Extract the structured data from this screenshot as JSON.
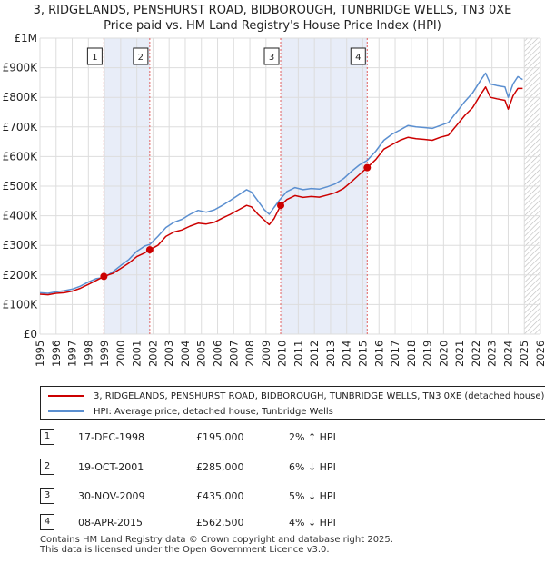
{
  "title_line1": "3, RIDGELANDS, PENSHURST ROAD, BIDBOROUGH, TUNBRIDGE WELLS, TN3 0XE",
  "title_line2": "Price paid vs. HM Land Registry's House Price Index (HPI)",
  "chart_data": {
    "type": "line",
    "title": "3, RIDGELANDS, PENSHURST ROAD, BIDBOROUGH, TUNBRIDGE WELLS, TN3 0XE — Price paid vs. HM Land Registry's House Price Index (HPI)",
    "xlim": [
      1995,
      2026
    ],
    "ylim": [
      0,
      1000000
    ],
    "x_ticks": [
      "1995",
      "1996",
      "1997",
      "1998",
      "1999",
      "2000",
      "2001",
      "2002",
      "2003",
      "2004",
      "2005",
      "2006",
      "2007",
      "2008",
      "2009",
      "2010",
      "2011",
      "2012",
      "2013",
      "2014",
      "2015",
      "2016",
      "2017",
      "2018",
      "2019",
      "2020",
      "2021",
      "2022",
      "2023",
      "2024",
      "2025",
      "2026"
    ],
    "y_ticks": [
      {
        "value": 0,
        "label": "£0"
      },
      {
        "value": 100000,
        "label": "£100K"
      },
      {
        "value": 200000,
        "label": "£200K"
      },
      {
        "value": 300000,
        "label": "£300K"
      },
      {
        "value": 400000,
        "label": "£400K"
      },
      {
        "value": 500000,
        "label": "£500K"
      },
      {
        "value": 600000,
        "label": "£600K"
      },
      {
        "value": 700000,
        "label": "£700K"
      },
      {
        "value": 800000,
        "label": "£800K"
      },
      {
        "value": 900000,
        "label": "£900K"
      },
      {
        "value": 1000000,
        "label": "£1M"
      }
    ],
    "series": [
      {
        "name": "3, RIDGELANDS, PENSHURST ROAD, BIDBOROUGH, TUNBRIDGE WELLS, TN3 0XE (detached house)",
        "color": "#cc0000",
        "points": [
          [
            1995.0,
            135000
          ],
          [
            1995.5,
            133000
          ],
          [
            1996.0,
            138000
          ],
          [
            1996.5,
            140000
          ],
          [
            1997.0,
            145000
          ],
          [
            1997.5,
            155000
          ],
          [
            1998.0,
            168000
          ],
          [
            1998.5,
            182000
          ],
          [
            1998.96,
            195000
          ],
          [
            1999.5,
            205000
          ],
          [
            2000.0,
            222000
          ],
          [
            2000.5,
            240000
          ],
          [
            2001.0,
            262000
          ],
          [
            2001.5,
            275000
          ],
          [
            2001.8,
            285000
          ],
          [
            2002.3,
            300000
          ],
          [
            2002.8,
            330000
          ],
          [
            2003.3,
            345000
          ],
          [
            2003.8,
            352000
          ],
          [
            2004.3,
            365000
          ],
          [
            2004.8,
            375000
          ],
          [
            2005.3,
            372000
          ],
          [
            2005.8,
            378000
          ],
          [
            2006.3,
            392000
          ],
          [
            2006.8,
            405000
          ],
          [
            2007.3,
            420000
          ],
          [
            2007.8,
            435000
          ],
          [
            2008.1,
            430000
          ],
          [
            2008.5,
            405000
          ],
          [
            2008.9,
            385000
          ],
          [
            2009.2,
            370000
          ],
          [
            2009.5,
            390000
          ],
          [
            2009.91,
            435000
          ],
          [
            2010.3,
            455000
          ],
          [
            2010.8,
            468000
          ],
          [
            2011.3,
            462000
          ],
          [
            2011.8,
            465000
          ],
          [
            2012.3,
            463000
          ],
          [
            2012.8,
            470000
          ],
          [
            2013.3,
            478000
          ],
          [
            2013.8,
            492000
          ],
          [
            2014.3,
            515000
          ],
          [
            2014.8,
            540000
          ],
          [
            2015.27,
            562500
          ],
          [
            2015.8,
            590000
          ],
          [
            2016.3,
            625000
          ],
          [
            2016.8,
            640000
          ],
          [
            2017.3,
            655000
          ],
          [
            2017.8,
            665000
          ],
          [
            2018.3,
            660000
          ],
          [
            2018.8,
            658000
          ],
          [
            2019.3,
            655000
          ],
          [
            2019.8,
            665000
          ],
          [
            2020.3,
            672000
          ],
          [
            2020.8,
            705000
          ],
          [
            2021.3,
            738000
          ],
          [
            2021.8,
            765000
          ],
          [
            2022.3,
            810000
          ],
          [
            2022.6,
            835000
          ],
          [
            2022.9,
            800000
          ],
          [
            2023.3,
            795000
          ],
          [
            2023.8,
            790000
          ],
          [
            2024.0,
            760000
          ],
          [
            2024.3,
            805000
          ],
          [
            2024.6,
            830000
          ],
          [
            2024.9,
            830000
          ]
        ]
      },
      {
        "name": "HPI: Average price, detached house, Tunbridge Wells",
        "color": "#5b8fd0",
        "points": [
          [
            1995.0,
            140000
          ],
          [
            1995.5,
            138000
          ],
          [
            1996.0,
            143000
          ],
          [
            1996.5,
            147000
          ],
          [
            1997.0,
            152000
          ],
          [
            1997.5,
            162000
          ],
          [
            1998.0,
            176000
          ],
          [
            1998.5,
            188000
          ],
          [
            1998.96,
            191000
          ],
          [
            1999.5,
            210000
          ],
          [
            2000.0,
            232000
          ],
          [
            2000.5,
            252000
          ],
          [
            2001.0,
            280000
          ],
          [
            2001.5,
            298000
          ],
          [
            2001.8,
            303000
          ],
          [
            2002.3,
            330000
          ],
          [
            2002.8,
            360000
          ],
          [
            2003.3,
            378000
          ],
          [
            2003.8,
            388000
          ],
          [
            2004.3,
            405000
          ],
          [
            2004.8,
            418000
          ],
          [
            2005.3,
            412000
          ],
          [
            2005.8,
            420000
          ],
          [
            2006.3,
            435000
          ],
          [
            2006.8,
            452000
          ],
          [
            2007.3,
            470000
          ],
          [
            2007.8,
            488000
          ],
          [
            2008.1,
            480000
          ],
          [
            2008.5,
            450000
          ],
          [
            2008.9,
            420000
          ],
          [
            2009.2,
            405000
          ],
          [
            2009.5,
            428000
          ],
          [
            2009.91,
            458000
          ],
          [
            2010.3,
            482000
          ],
          [
            2010.8,
            495000
          ],
          [
            2011.3,
            488000
          ],
          [
            2011.8,
            492000
          ],
          [
            2012.3,
            490000
          ],
          [
            2012.8,
            498000
          ],
          [
            2013.3,
            508000
          ],
          [
            2013.8,
            525000
          ],
          [
            2014.3,
            550000
          ],
          [
            2014.8,
            572000
          ],
          [
            2015.27,
            587000
          ],
          [
            2015.8,
            618000
          ],
          [
            2016.3,
            655000
          ],
          [
            2016.8,
            675000
          ],
          [
            2017.3,
            690000
          ],
          [
            2017.8,
            705000
          ],
          [
            2018.3,
            700000
          ],
          [
            2018.8,
            698000
          ],
          [
            2019.3,
            695000
          ],
          [
            2019.8,
            705000
          ],
          [
            2020.3,
            715000
          ],
          [
            2020.8,
            750000
          ],
          [
            2021.3,
            785000
          ],
          [
            2021.8,
            815000
          ],
          [
            2022.3,
            858000
          ],
          [
            2022.6,
            882000
          ],
          [
            2022.9,
            845000
          ],
          [
            2023.3,
            840000
          ],
          [
            2023.8,
            835000
          ],
          [
            2024.0,
            800000
          ],
          [
            2024.3,
            845000
          ],
          [
            2024.6,
            870000
          ],
          [
            2024.9,
            860000
          ]
        ]
      }
    ],
    "sales": [
      {
        "num": "1",
        "date": "17-DEC-1998",
        "price": "£195,000",
        "hpi": "2% ↑ HPI",
        "x": 1998.96,
        "y": 195000
      },
      {
        "num": "2",
        "date": "19-OCT-2001",
        "price": "£285,000",
        "hpi": "6% ↓ HPI",
        "x": 2001.8,
        "y": 285000
      },
      {
        "num": "3",
        "date": "30-NOV-2009",
        "price": "£435,000",
        "hpi": "5% ↓ HPI",
        "x": 2009.91,
        "y": 435000
      },
      {
        "num": "4",
        "date": "08-APR-2015",
        "price": "£562,500",
        "hpi": "4% ↓ HPI",
        "x": 2015.27,
        "y": 562500
      }
    ],
    "shaded_ranges": [
      [
        1998.96,
        2001.8
      ],
      [
        2009.91,
        2015.27
      ]
    ],
    "forecast_from": 2025.0
  },
  "legend": {
    "property_label": "3, RIDGELANDS, PENSHURST ROAD, BIDBOROUGH, TUNBRIDGE WELLS, TN3 0XE (detached house)",
    "hpi_label": "HPI: Average price, detached house, Tunbridge Wells"
  },
  "footer_line1": "Contains HM Land Registry data © Crown copyright and database right 2025.",
  "footer_line2": "This data is licensed under the Open Government Licence v3.0.",
  "colors": {
    "property": "#cc0000",
    "hpi": "#5b8fd0",
    "shade": "#e8edf8",
    "grid": "#dddddd"
  }
}
